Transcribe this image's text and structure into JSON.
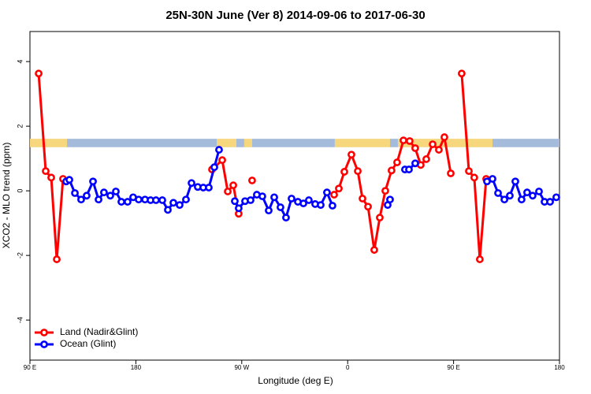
{
  "chart_data": {
    "type": "line",
    "title": "25N-30N June (Ver 8)   2014-09-06 to 2017-06-30",
    "x_label": "Longitude (deg E)",
    "y_label": "XCO2 - MLO trend (ppm)",
    "xlim": [
      90,
      540
    ],
    "ylim": [
      -5.24,
      4.93
    ],
    "xticks": [
      {
        "value": 90,
        "label": "90 E"
      },
      {
        "value": 180,
        "label": "180"
      },
      {
        "value": 270,
        "label": "90 W"
      },
      {
        "value": 360,
        "label": "0"
      },
      {
        "value": 450,
        "label": "90 E"
      },
      {
        "value": 540,
        "label": "180"
      }
    ],
    "yticks": [
      -4,
      -2,
      0,
      2,
      4
    ],
    "legend": "bottom-left",
    "surface_band": {
      "y": [
        1.35,
        1.61
      ],
      "segments": [
        {
          "x": [
            90,
            121.5
          ],
          "color": "#f6d77e"
        },
        {
          "x": [
            121.5,
            248.7
          ],
          "color": "#a4bbdc"
        },
        {
          "x": [
            248.7,
            265.4
          ],
          "color": "#f6d77e"
        },
        {
          "x": [
            265.4,
            272.1
          ],
          "color": "#a4bbdc"
        },
        {
          "x": [
            272.1,
            278.8
          ],
          "color": "#f6d77e"
        },
        {
          "x": [
            278.8,
            349.1
          ],
          "color": "#a4bbdc"
        },
        {
          "x": [
            349.1,
            396
          ],
          "color": "#f6d77e"
        },
        {
          "x": [
            396,
            402.7
          ],
          "color": "#a4bbdc"
        },
        {
          "x": [
            402.7,
            483.1
          ],
          "color": "#f6d77e"
        },
        {
          "x": [
            483.1,
            540
          ],
          "color": "#a4bbdc"
        }
      ]
    },
    "series": [
      {
        "name": "Land (Nadir&Glint)",
        "color": "#ff0000",
        "x": [
          97.4,
          103.4,
          108.1,
          112.8,
          118.1,
          null,
          244.7,
          253.4,
          258.1,
          262.8,
          267.4,
          null,
          278.8,
          null,
          348.5,
          352.5,
          357.2,
          363.2,
          368.6,
          372.6,
          377.3,
          382.6,
          387.3,
          392,
          397.3,
          402,
          407.4,
          412.7,
          417.4,
          422.1,
          426.8,
          432.2,
          437.5,
          442.2,
          447.6,
          null,
          456.9,
          463,
          467.6,
          472.3,
          477.7
        ],
        "values": [
          3.63,
          0.61,
          0.41,
          -2.12,
          0.37,
          null,
          0.66,
          0.95,
          -0.02,
          0.17,
          -0.71,
          null,
          0.32,
          null,
          -0.12,
          0.07,
          0.59,
          1.12,
          0.61,
          -0.24,
          -0.49,
          -1.83,
          -0.83,
          0,
          0.63,
          0.88,
          1.56,
          1.54,
          1.32,
          0.8,
          0.98,
          1.44,
          1.27,
          1.66,
          0.54,
          null,
          3.63,
          0.61,
          0.41,
          -2.12,
          0.37
        ]
      },
      {
        "name": "Ocean (Glint)",
        "color": "#0000ff",
        "x": [
          120.8,
          123.5,
          128.2,
          133.5,
          138.2,
          143.6,
          148.3,
          152.9,
          158.3,
          163,
          167.7,
          173,
          177.7,
          182.4,
          187.8,
          192.5,
          197.1,
          202.5,
          207.2,
          211.9,
          217.2,
          222.6,
          227.3,
          232.6,
          237.3,
          242,
          246.7,
          250.7,
          null,
          264.1,
          267.4,
          272.8,
          277.5,
          282.8,
          287.5,
          292.9,
          297.6,
          302.9,
          307.6,
          312.3,
          317.7,
          322.4,
          327,
          332.4,
          337.1,
          342.4,
          347.1,
          null,
          394,
          396,
          null,
          408.7,
          412.1,
          417.4,
          null,
          478.4,
          483.1,
          487.8,
          493.2,
          497.8,
          502.5,
          507.8,
          512.5,
          517.2,
          522.6,
          527.3,
          532,
          537.3
        ],
        "values": [
          0.29,
          0.34,
          -0.07,
          -0.27,
          -0.15,
          0.29,
          -0.27,
          -0.05,
          -0.15,
          -0.02,
          -0.34,
          -0.34,
          -0.2,
          -0.27,
          -0.27,
          -0.29,
          -0.29,
          -0.29,
          -0.59,
          -0.37,
          -0.44,
          -0.27,
          0.24,
          0.12,
          0.1,
          0.1,
          0.73,
          1.27,
          null,
          -0.32,
          -0.54,
          -0.32,
          -0.29,
          -0.12,
          -0.17,
          -0.61,
          -0.2,
          -0.51,
          -0.83,
          -0.24,
          -0.34,
          -0.39,
          -0.29,
          -0.41,
          -0.44,
          -0.05,
          -0.46,
          null,
          -0.44,
          -0.27,
          null,
          0.66,
          0.66,
          0.85,
          null,
          0.29,
          0.37,
          -0.07,
          -0.27,
          -0.15,
          0.29,
          -0.27,
          -0.05,
          -0.15,
          -0.02,
          -0.34,
          -0.34,
          -0.2
        ]
      }
    ]
  }
}
